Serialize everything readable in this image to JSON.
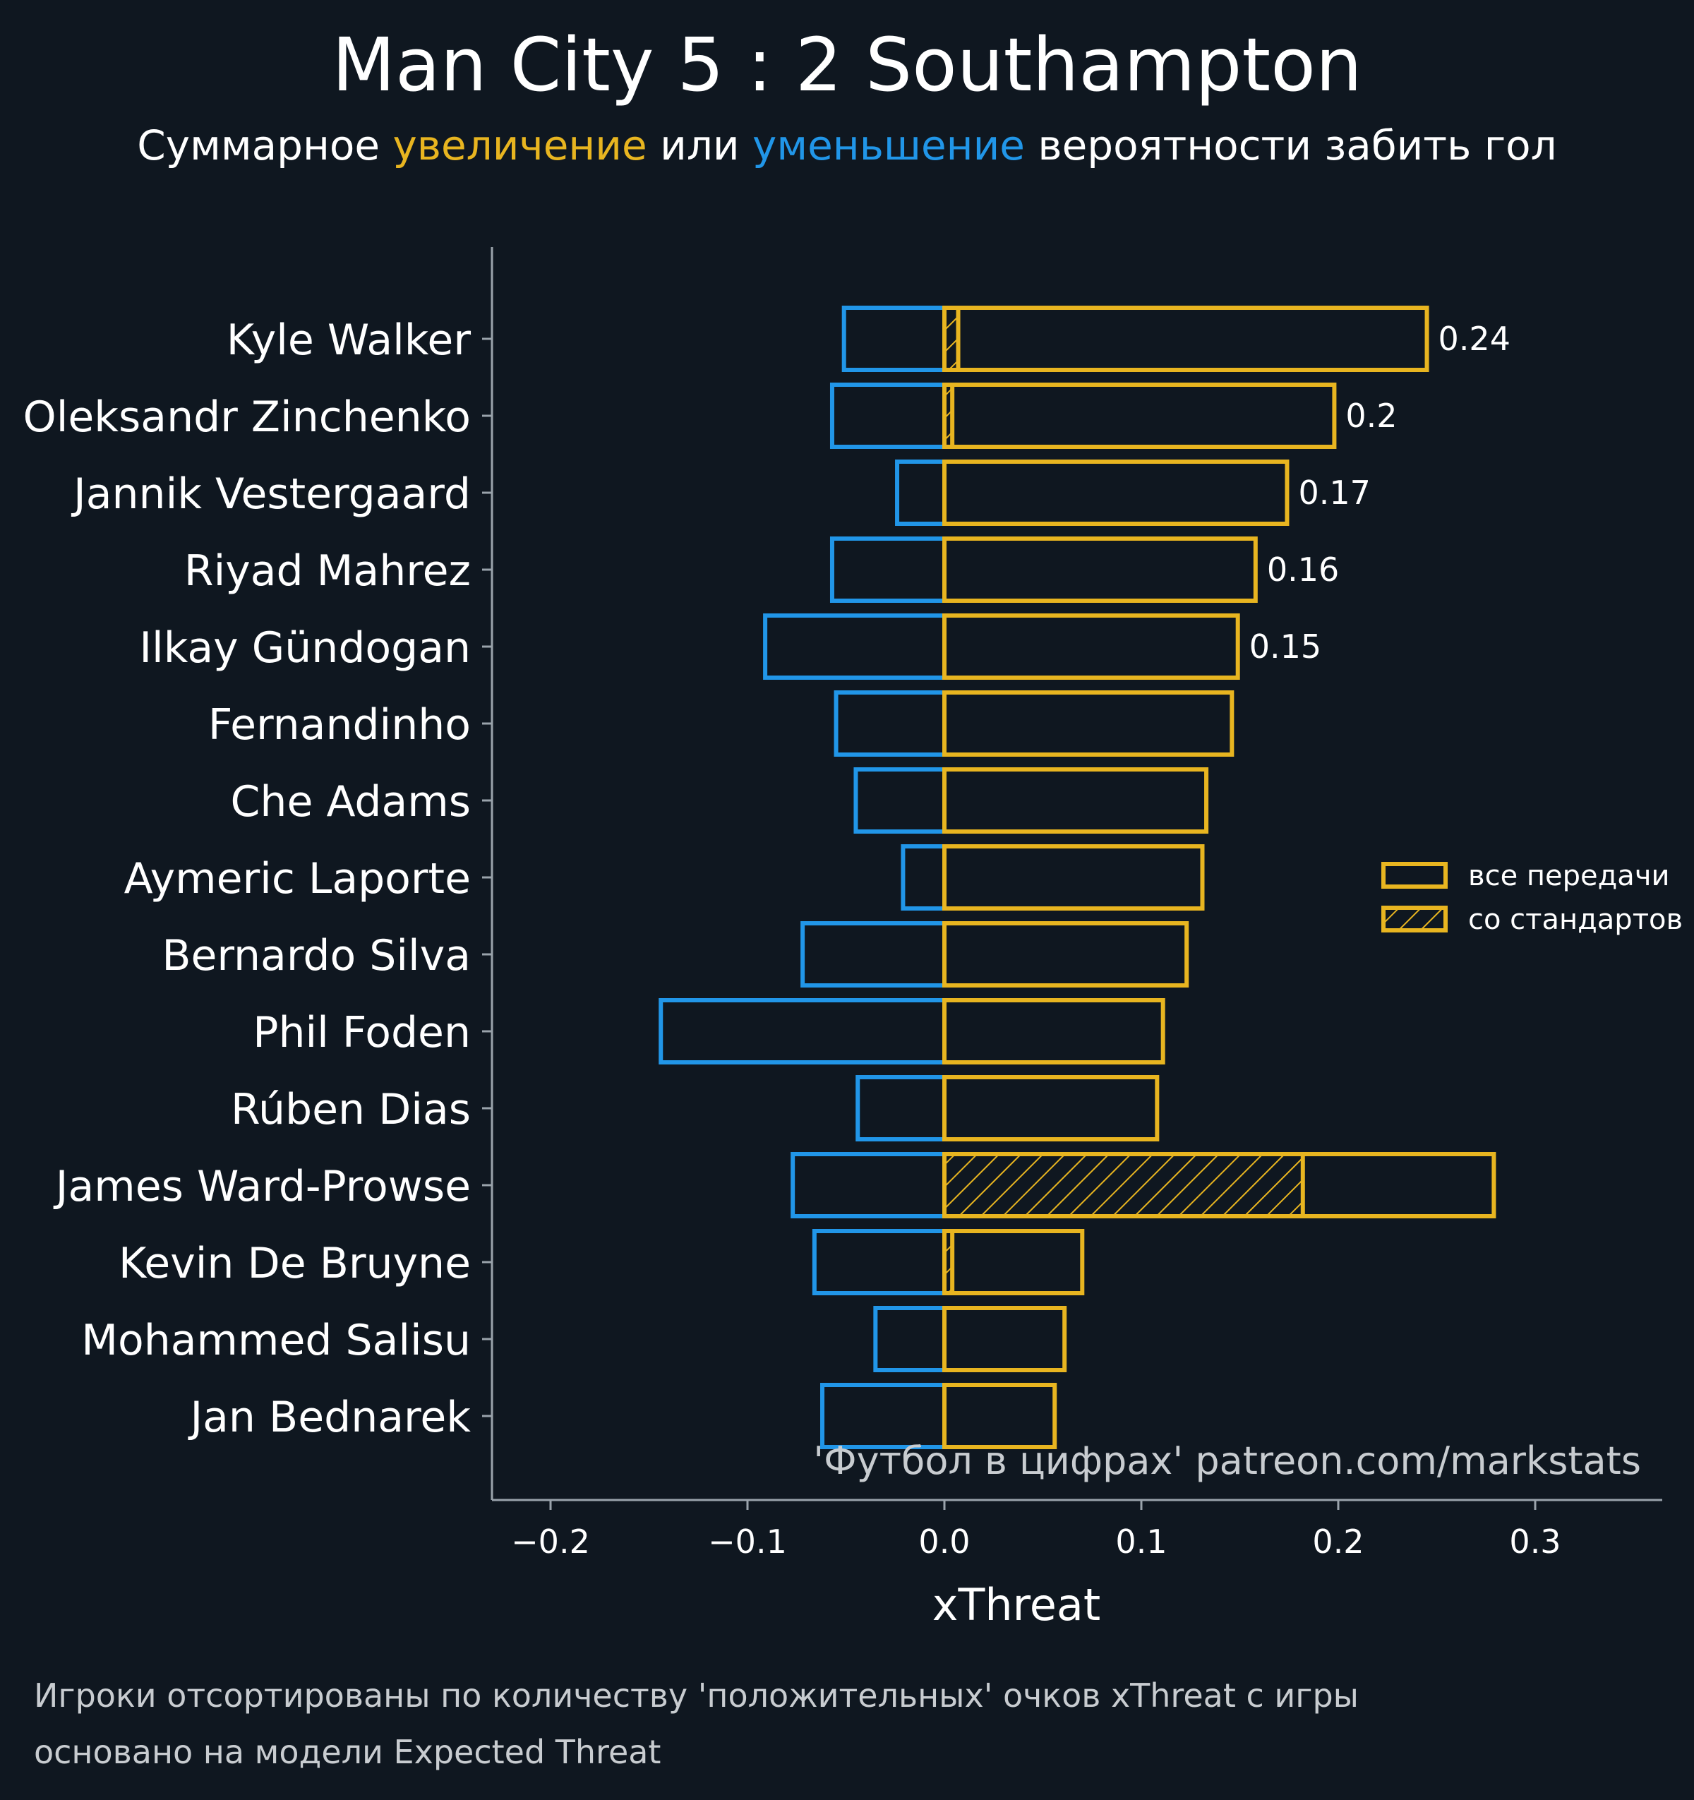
{
  "title": "Man City 5 : 2 Southampton",
  "subtitle": {
    "part1": "Суммарное ",
    "increase": "увеличение",
    "part2": " или ",
    "decrease": "уменьшение",
    "part3": " вероятности забить гол"
  },
  "colors": {
    "background": "#0f1720",
    "positive": "#e8b520",
    "negative": "#2196e8",
    "text": "#ffffff",
    "axis": "#9aa3ab",
    "watermark": "#c8ccd0"
  },
  "footnotes": [
    "Игроки отсортированы по количеству 'положительных' очков xThreat с игры",
    "основано на модели Expected Threat"
  ],
  "chart_data": {
    "type": "bar",
    "orientation": "horizontal",
    "xlabel": "xThreat",
    "xlim": [
      -0.23,
      0.365
    ],
    "xticks": [
      -0.2,
      -0.1,
      0.0,
      0.1,
      0.2,
      0.3
    ],
    "xtick_labels": [
      "−0.2",
      "−0.1",
      "0.0",
      "0.1",
      "0.2",
      "0.3"
    ],
    "watermark": "'Футбол в цифрах' patreon.com/markstats",
    "legend": {
      "position": "right",
      "items": [
        {
          "label": "все передачи",
          "hatched": false
        },
        {
          "label": "со стандартов",
          "hatched": true
        }
      ]
    },
    "categories": [
      "Kyle Walker",
      "Oleksandr Zinchenko",
      "Jannik Vestergaard",
      "Riyad Mahrez",
      "Ilkay Gündogan",
      "Fernandinho",
      "Che Adams",
      "Aymeric Laporte",
      "Bernardo Silva",
      "Phil Foden",
      "Rúben Dias",
      "James Ward-Prowse",
      "Kevin De Bruyne",
      "Mohammed Salisu",
      "Jan Bednarek"
    ],
    "series": [
      {
        "name": "все передачи",
        "sign": "positive",
        "values": [
          0.245,
          0.198,
          0.174,
          0.158,
          0.149,
          0.146,
          0.133,
          0.131,
          0.123,
          0.111,
          0.108,
          0.279,
          0.07,
          0.061,
          0.056
        ]
      },
      {
        "name": "со стандартов",
        "sign": "positive",
        "values": [
          0.007,
          0.004,
          0.0,
          0.0,
          0.0,
          0.0,
          0.0,
          0.0,
          0.0,
          0.0,
          0.0,
          0.182,
          0.004,
          0.0,
          0.0
        ]
      },
      {
        "sign": "negative",
        "values": [
          -0.051,
          -0.057,
          -0.024,
          -0.057,
          -0.091,
          -0.055,
          -0.045,
          -0.021,
          -0.072,
          -0.144,
          -0.044,
          -0.077,
          -0.066,
          -0.035,
          -0.062
        ]
      }
    ],
    "data_labels": [
      "0.24",
      "0.2",
      "0.17",
      "0.16",
      "0.15",
      "",
      "",
      "",
      "",
      "",
      "",
      "",
      "",
      "",
      ""
    ]
  }
}
